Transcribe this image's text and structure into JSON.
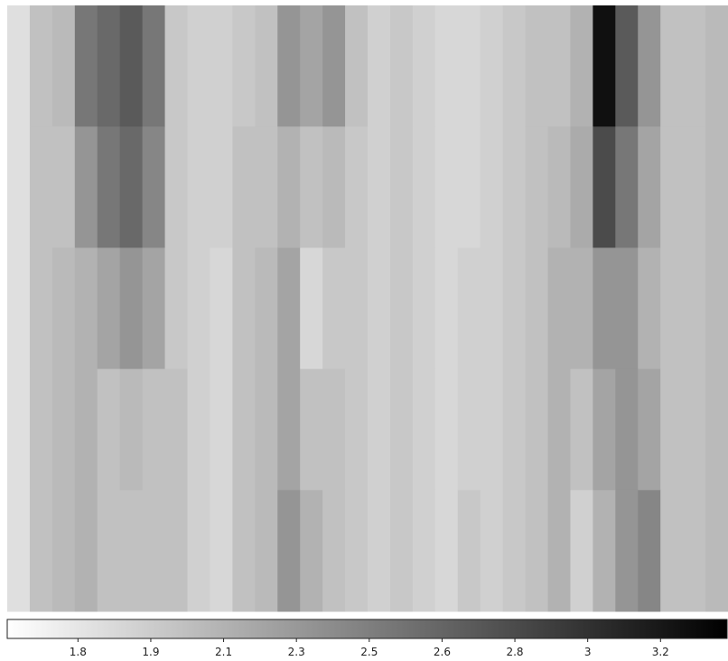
{
  "chart_data": {
    "type": "heatmap",
    "colormap": [
      "#ffffff",
      "#000000"
    ],
    "vlim": [
      1.58,
      3.31
    ],
    "vticks": [
      {
        "value": 1.75,
        "label": "1.8"
      },
      {
        "value": 1.925,
        "label": "1.9"
      },
      {
        "value": 2.1,
        "label": "2.1"
      },
      {
        "value": 2.275,
        "label": "2.3"
      },
      {
        "value": 2.45,
        "label": "2.5"
      },
      {
        "value": 2.625,
        "label": "2.6"
      },
      {
        "value": 2.8,
        "label": "2.8"
      },
      {
        "value": 2.975,
        "label": "3"
      },
      {
        "value": 3.15,
        "label": "3.2"
      }
    ],
    "values": [
      [
        1.8,
        2.0,
        2.05,
        2.5,
        2.6,
        2.7,
        2.5,
        1.95,
        1.9,
        1.9,
        1.95,
        2.0,
        2.3,
        2.2,
        2.3,
        2.0,
        1.9,
        1.95,
        1.9,
        1.85,
        1.85,
        1.9,
        1.95,
        2.0,
        2.0,
        2.1,
        3.2,
        2.7,
        2.3,
        2.0,
        2.0,
        2.05
      ],
      [
        1.8,
        2.0,
        2.0,
        2.3,
        2.5,
        2.6,
        2.4,
        1.95,
        1.9,
        1.9,
        2.0,
        2.0,
        2.1,
        2.0,
        2.05,
        1.95,
        1.9,
        1.95,
        1.9,
        1.85,
        1.85,
        1.9,
        1.95,
        2.0,
        2.05,
        2.15,
        2.8,
        2.5,
        2.2,
        2.0,
        2.0,
        2.05
      ],
      [
        1.8,
        2.0,
        2.05,
        2.1,
        2.2,
        2.3,
        2.2,
        1.95,
        1.9,
        1.85,
        2.0,
        2.05,
        2.2,
        1.85,
        1.95,
        1.95,
        1.9,
        1.95,
        1.9,
        1.85,
        1.9,
        1.9,
        1.95,
        2.0,
        2.1,
        2.1,
        2.3,
        2.3,
        2.1,
        2.0,
        2.0,
        2.05
      ],
      [
        1.8,
        2.0,
        2.05,
        2.1,
        2.0,
        2.05,
        2.0,
        2.0,
        1.9,
        1.85,
        2.0,
        2.05,
        2.2,
        2.0,
        2.0,
        1.95,
        1.9,
        1.95,
        1.9,
        1.85,
        1.9,
        1.9,
        1.95,
        2.0,
        2.1,
        2.0,
        2.2,
        2.3,
        2.2,
        2.0,
        2.0,
        2.05
      ],
      [
        1.8,
        2.0,
        2.05,
        2.1,
        2.0,
        2.0,
        2.0,
        2.0,
        1.9,
        1.85,
        2.0,
        2.05,
        2.3,
        2.1,
        2.0,
        1.95,
        1.9,
        1.95,
        1.9,
        1.85,
        1.95,
        1.9,
        1.95,
        2.0,
        2.1,
        1.9,
        2.1,
        2.3,
        2.4,
        2.0,
        2.0,
        2.05
      ]
    ]
  }
}
